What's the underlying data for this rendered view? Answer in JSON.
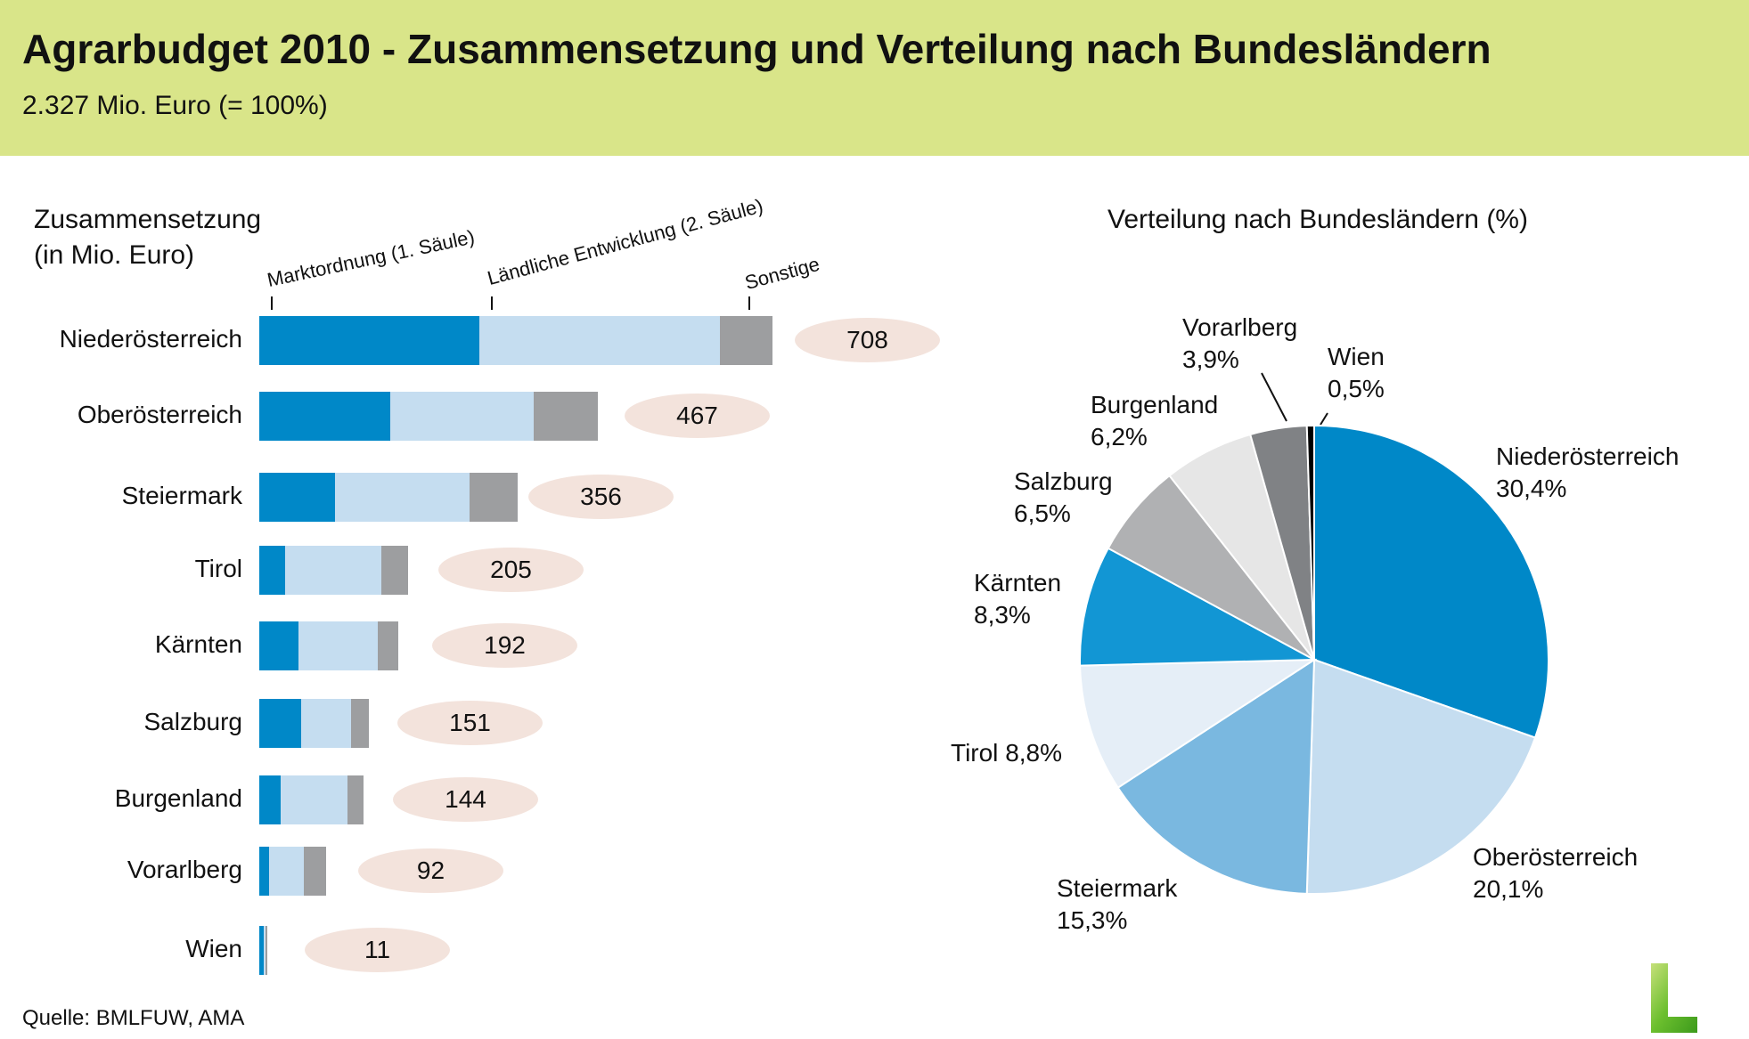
{
  "header": {
    "title": "Agrarbudget 2010 - Zusammensetzung und Verteilung nach Bundesländern",
    "subtitle": "2.327 Mio. Euro (= 100%)"
  },
  "source": "Quelle: BMLFUW, AMA",
  "colors": {
    "header_bg": "#d9e589",
    "markt": "#0088c8",
    "laendlich": "#c5ddf0",
    "sonstige": "#9d9ea0",
    "bubble": "#f3e3dc"
  },
  "chart_data": [
    {
      "type": "bar",
      "orientation": "horizontal-stacked",
      "title_line1": "Zusammensetzung",
      "title_line2": "(in Mio. Euro)",
      "series_names": [
        "Marktordnung (1. Säule)",
        "Ländliche Entwicklung (2. Säule)",
        "Sonstige"
      ],
      "categories": [
        "Niederösterreich",
        "Oberösterreich",
        "Steiermark",
        "Tirol",
        "Kärnten",
        "Salzburg",
        "Burgenland",
        "Vorarlberg",
        "Wien"
      ],
      "series": [
        {
          "name": "Marktordnung (1. Säule)",
          "values": [
            304,
            181,
            105,
            36,
            54,
            58,
            29,
            14,
            6
          ]
        },
        {
          "name": "Ländliche Entwicklung (2. Säule)",
          "values": [
            332,
            197,
            185,
            133,
            109,
            69,
            93,
            47,
            2
          ]
        },
        {
          "name": "Sonstige",
          "values": [
            72,
            89,
            66,
            36,
            29,
            24,
            22,
            31,
            3
          ]
        }
      ],
      "totals": [
        "708",
        "467",
        "356",
        "205",
        "192",
        "151",
        "144",
        "92",
        "11"
      ]
    },
    {
      "type": "pie",
      "title": "Verteilung nach Bundesländern (%)",
      "slices": [
        {
          "name": "Niederösterreich",
          "value": 30.4,
          "label": "30,4%",
          "color": "#0088c8"
        },
        {
          "name": "Oberösterreich",
          "value": 20.1,
          "label": "20,1%",
          "color": "#c5ddf0"
        },
        {
          "name": "Steiermark",
          "value": 15.3,
          "label": "15,3%",
          "color": "#7ab8e0"
        },
        {
          "name": "Tirol",
          "value": 8.8,
          "label": "8,8%",
          "color": "#e5eef7"
        },
        {
          "name": "Kärnten",
          "value": 8.3,
          "label": "8,3%",
          "color": "#1296d4"
        },
        {
          "name": "Salzburg",
          "value": 6.5,
          "label": "6,5%",
          "color": "#b0b1b3"
        },
        {
          "name": "Burgenland",
          "value": 6.2,
          "label": "6,2%",
          "color": "#e6e6e6"
        },
        {
          "name": "Vorarlberg",
          "value": 3.9,
          "label": "3,9%",
          "color": "#808285"
        },
        {
          "name": "Wien",
          "value": 0.5,
          "label": "0,5%",
          "color": "#000000"
        }
      ]
    }
  ]
}
